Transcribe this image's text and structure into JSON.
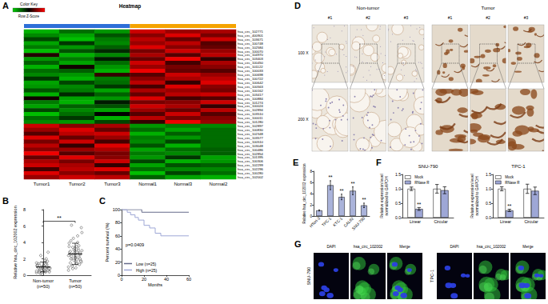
{
  "chart_data": [
    {
      "panel": "A",
      "type": "heatmap",
      "title": "Heatmap",
      "columns": [
        "Tumor1",
        "Tumor2",
        "Tumor3",
        "Normal1",
        "Normal3",
        "Normal2"
      ],
      "rows": [
        "hsa_circ_102771",
        "hsa_circ_400901",
        "hsa_circ_103671",
        "hsa_circ_100748",
        "hsa_circ_102584",
        "hsa_circ_100070",
        "hsa_circ_104970",
        "hsa_circ_103403",
        "hsa_circ_100450",
        "hsa_circ_101122",
        "hsa_circ_100033",
        "hsa_circ_100698",
        "hsa_circ_100722",
        "hsa_circ_100642",
        "hsa_circ_100563",
        "hsa_circ_100162",
        "hsa_circ_103417",
        "hsa_circ_100884",
        "hsa_circ_101274",
        "hsa_circ_100024",
        "hsa_circ_102894",
        "hsa_circ_103510",
        "hsa_circ_100011",
        "hsa_circ_101280",
        "hsa_circ_102897",
        "hsa_circ_100830",
        "hsa_circ_102348",
        "hsa_circ_103577",
        "hsa_circ_100510",
        "hsa_circ_103048",
        "hsa_circ_100486",
        "hsa_circ_102854",
        "hsa_circ_101395",
        "hsa_circ_100306",
        "hsa_circ_102299",
        "hsa_circ_102296",
        "hsa_circ_100280",
        "hsa_circ_102002"
      ],
      "cells": [
        [
          -1.3,
          -0.8,
          -1.1,
          1.2,
          0.9,
          1.0
        ],
        [
          -1.0,
          -1.2,
          -0.6,
          0.8,
          1.3,
          0.7
        ],
        [
          -0.5,
          -1.4,
          -0.9,
          1.1,
          0.6,
          1.2
        ],
        [
          -1.2,
          -0.4,
          -1.0,
          0.9,
          1.1,
          0.5
        ],
        [
          -0.9,
          -1.1,
          -0.7,
          1.3,
          0.8,
          0.6
        ],
        [
          -1.4,
          -0.6,
          -0.3,
          0.7,
          1.2,
          0.9
        ],
        [
          0.2,
          -1.3,
          -1.0,
          1.0,
          0.5,
          1.1
        ],
        [
          -1.1,
          -0.9,
          -0.2,
          0.6,
          1.4,
          0.3
        ],
        [
          -0.7,
          -1.2,
          -0.8,
          1.2,
          0.4,
          1.0
        ],
        [
          -1.3,
          0.1,
          -1.1,
          0.9,
          0.7,
          0.8
        ],
        [
          -0.8,
          -0.7,
          -1.3,
          1.4,
          0.6,
          0.5
        ],
        [
          -1.0,
          -1.1,
          0.3,
          0.5,
          1.2,
          0.9
        ],
        [
          -0.4,
          -1.3,
          -0.9,
          0.8,
          1.0,
          1.1
        ],
        [
          -1.2,
          -0.5,
          -0.8,
          1.1,
          0.3,
          1.3
        ],
        [
          -1.1,
          -1.0,
          -0.4,
          0.4,
          1.3,
          0.8
        ],
        [
          -0.6,
          -0.9,
          -1.2,
          1.0,
          0.9,
          0.7
        ],
        [
          -1.3,
          -0.3,
          -0.7,
          0.6,
          1.1,
          1.2
        ],
        [
          0.1,
          -1.2,
          -1.1,
          1.3,
          0.4,
          0.5
        ],
        [
          -0.9,
          -1.3,
          -0.2,
          0.7,
          0.8,
          1.2
        ],
        [
          -1.2,
          -0.7,
          -0.6,
          1.2,
          1.0,
          0.3
        ],
        [
          -0.5,
          -1.0,
          -1.2,
          0.9,
          0.6,
          1.1
        ],
        [
          -1.4,
          -0.8,
          0.0,
          0.5,
          1.2,
          0.5
        ],
        [
          -0.8,
          -0.4,
          -1.3,
          1.1,
          0.7,
          0.8
        ],
        [
          -1.0,
          -1.1,
          -0.5,
          0.3,
          1.4,
          0.9
        ],
        [
          1.2,
          0.8,
          1.0,
          -1.1,
          -0.9,
          -1.0
        ],
        [
          0.9,
          1.3,
          0.6,
          -0.8,
          -1.2,
          -0.8
        ],
        [
          0.5,
          1.1,
          1.2,
          -1.3,
          -0.7,
          -0.8
        ],
        [
          1.3,
          0.6,
          0.9,
          -0.9,
          -1.1,
          -0.8
        ],
        [
          0.7,
          1.2,
          0.4,
          -1.0,
          -0.5,
          -0.8
        ],
        [
          1.1,
          0.3,
          1.3,
          -0.6,
          -1.3,
          -0.8
        ],
        [
          0.8,
          0.9,
          1.0,
          -1.2,
          -0.8,
          -0.7
        ],
        [
          1.4,
          0.5,
          0.7,
          -0.9,
          -1.0,
          -0.7
        ],
        [
          0.6,
          1.3,
          0.8,
          -1.1,
          -0.4,
          -1.2
        ],
        [
          1.0,
          0.7,
          1.2,
          -0.5,
          -1.3,
          -1.1
        ],
        [
          1.2,
          1.0,
          0.3,
          -1.2,
          -0.6,
          -0.7
        ],
        [
          0.4,
          1.1,
          1.3,
          -0.8,
          -1.0,
          -1.0
        ],
        [
          1.3,
          0.8,
          0.6,
          -1.4,
          -0.5,
          -0.8
        ],
        [
          0.9,
          1.2,
          1.1,
          -0.7,
          -1.2,
          -1.3
        ]
      ],
      "color_bar": {
        "title": "Color Key",
        "label": "Row Z-Score",
        "range": [
          -1.5,
          1.5
        ]
      }
    },
    {
      "panel": "B",
      "type": "scatter",
      "marker": "circle",
      "color": "#333333",
      "categories": [
        "Non-tumor\n(n=50)",
        "Tumor\n(n=50)"
      ],
      "values": [
        [
          0.3,
          0.5,
          0.6,
          0.8,
          1.0,
          1.2,
          0.4,
          0.7,
          0.9,
          1.1,
          1.4,
          1.6,
          0.2,
          0.5,
          0.8,
          1.0,
          1.3,
          0.6,
          0.9,
          1.2,
          0.4,
          0.7,
          1.0,
          1.5,
          1.8,
          0.3,
          0.6,
          0.9,
          1.1,
          1.3,
          0.5,
          0.8,
          1.0,
          1.2,
          2.0,
          2.4,
          0.4,
          0.7,
          0.9,
          1.1,
          0.6,
          0.8,
          1.0,
          1.4,
          1.7,
          0.3,
          0.5,
          0.9,
          1.2,
          2.8
        ],
        [
          1.0,
          1.5,
          2.0,
          2.5,
          3.0,
          3.5,
          4.0,
          1.2,
          1.8,
          2.2,
          2.8,
          3.2,
          0.8,
          1.6,
          2.4,
          2.9,
          3.6,
          4.5,
          5.2,
          1.4,
          2.0,
          2.6,
          3.1,
          0.6,
          1.9,
          2.3,
          2.7,
          3.3,
          3.9,
          4.8,
          1.1,
          1.7,
          2.1,
          2.5,
          3.0,
          3.4,
          5.8,
          0.9,
          1.5,
          2.2,
          2.6,
          3.0,
          3.5,
          4.2,
          1.3,
          1.8,
          2.4,
          2.8,
          6.1,
          2.0
        ]
      ],
      "mean": [
        1.0,
        2.6
      ],
      "error": [
        0.6,
        1.3
      ],
      "ylim": [
        0,
        8
      ],
      "yticks": [
        0,
        2,
        4,
        6,
        8
      ],
      "ylabel": "Relative hsa_circ_102002 expression",
      "annotations": [
        "**"
      ]
    },
    {
      "panel": "C",
      "type": "line",
      "line_style": "step",
      "legend": "bottom-left",
      "xlabel": "Months",
      "ylabel": "Percent survival (%)",
      "xlim": [
        0,
        60
      ],
      "xticks": [
        0,
        20,
        40,
        60
      ],
      "ylim": [
        0,
        100
      ],
      "yticks": [
        0,
        20,
        40,
        60,
        80,
        100
      ],
      "annotations": [
        "p=0.0409"
      ],
      "series": [
        {
          "name": "Low (n=25)",
          "color": "#666b8a",
          "x": [
            0,
            18,
            60
          ],
          "values": [
            100,
            96,
            96
          ]
        },
        {
          "name": "High (n=25)",
          "color": "#9ea7d6",
          "x": [
            0,
            5,
            8,
            12,
            15,
            20,
            25,
            30,
            35,
            60
          ],
          "values": [
            100,
            96,
            92,
            88,
            84,
            76,
            72,
            64,
            60,
            60
          ]
        }
      ]
    },
    {
      "panel": "E",
      "type": "bar",
      "color": "#aab3da",
      "categories": [
        "HTori-3",
        "TPC-1",
        "KTC-1",
        "CAL62",
        "SNU-790"
      ],
      "values": [
        1.0,
        5.5,
        3.4,
        4.5,
        1.9
      ],
      "error": [
        0.1,
        0.8,
        0.5,
        0.7,
        0.4
      ],
      "annotations": [
        null,
        "**",
        "**",
        "**",
        "**"
      ],
      "ylim": [
        0,
        8
      ],
      "yticks": [
        0,
        2,
        4,
        6,
        8
      ],
      "ylabel": "Relative hsa_circ_102002 expression"
    },
    {
      "panel": "F",
      "type": "bar",
      "title": "SNU-790",
      "legend": "top-left",
      "categories": [
        "Linear",
        "Circular"
      ],
      "series": [
        {
          "name": "Mock",
          "color": "#ffffff",
          "values": [
            1.0,
            1.0
          ],
          "error": [
            0.06,
            0.15
          ]
        },
        {
          "name": "RNase R",
          "color": "#9ea7d6",
          "values": [
            0.3,
            0.95
          ],
          "error": [
            0.05,
            0.12
          ],
          "annotations": [
            "**",
            null
          ]
        }
      ],
      "ylim": [
        0,
        1.5
      ],
      "yticks": [
        {
          "value": 0,
          "label": "0.0"
        },
        {
          "value": 0.5,
          "label": "0.5"
        },
        {
          "value": 1,
          "label": "1.0"
        },
        {
          "value": 1.5,
          "label": "1.5"
        }
      ],
      "ylabel": "Relative expression level\nnormalized to GAPDH"
    },
    {
      "type": "bar",
      "title": "TPC-1",
      "legend": "top-left",
      "categories": [
        "Linear",
        "Circular"
      ],
      "series": [
        {
          "name": "Mock",
          "color": "#ffffff",
          "values": [
            1.0,
            1.0
          ],
          "error": [
            0.07,
            0.16
          ]
        },
        {
          "name": "RNase R",
          "color": "#9ea7d6",
          "values": [
            0.25,
            0.93
          ],
          "error": [
            0.04,
            0.13
          ],
          "annotations": [
            "**",
            null
          ]
        }
      ],
      "ylim": [
        0,
        1.5
      ],
      "yticks": [
        {
          "value": 0,
          "label": "0.0"
        },
        {
          "value": 0.5,
          "label": "0.5"
        },
        {
          "value": 1,
          "label": "1.0"
        },
        {
          "value": 1.5,
          "label": "1.5"
        }
      ],
      "ylabel": "Relative expression level\nnormalized to GAPDH"
    }
  ],
  "images": [
    {
      "panel": "D",
      "groups": [
        {
          "title": "Non-tumor",
          "samples": [
            "#1",
            "#2",
            "#3"
          ]
        },
        {
          "title": "Tumor",
          "samples": [
            "#1",
            "#2",
            "#3"
          ]
        }
      ],
      "rows": [
        "100 X",
        "200 X"
      ]
    },
    {
      "panel": "G",
      "cell_lines": [
        "SNU-790",
        "TPC-1"
      ],
      "channels": [
        "DAPI",
        "hsa_circ_102002",
        "Merge"
      ]
    }
  ]
}
